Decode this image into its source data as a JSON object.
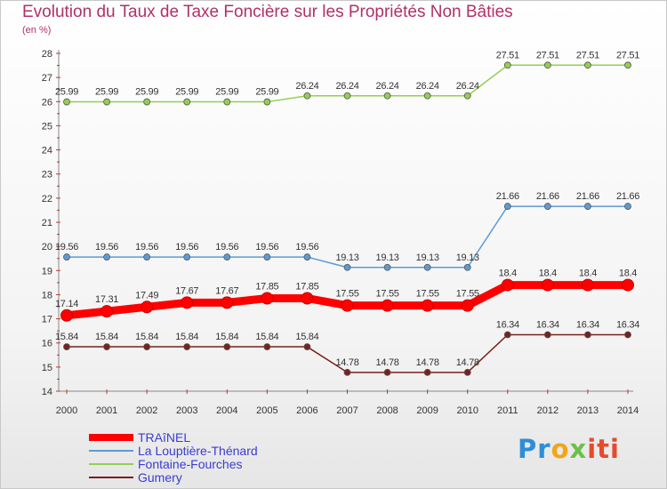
{
  "chart_data": {
    "type": "line",
    "title": "Evolution du Taux de Taxe Foncière sur les Propriétés Non Bâties",
    "ylabel": "(en %)",
    "xlabel": "",
    "x": [
      "2000",
      "2001",
      "2002",
      "2003",
      "2004",
      "2005",
      "2006",
      "2007",
      "2008",
      "2009",
      "2010",
      "2011",
      "2012",
      "2013",
      "2014"
    ],
    "ylim": [
      14,
      28
    ],
    "yticks": [
      14,
      15,
      16,
      17,
      18,
      19,
      20,
      21,
      22,
      23,
      24,
      25,
      26,
      27,
      28
    ],
    "grid": false,
    "legend_position": "bottom-left",
    "series": [
      {
        "name": "TRAîNEL",
        "color": "#ff0000",
        "emphasis": true,
        "values": [
          17.14,
          17.31,
          17.49,
          17.67,
          17.67,
          17.85,
          17.85,
          17.55,
          17.55,
          17.55,
          17.55,
          18.4,
          18.4,
          18.4,
          18.4
        ],
        "labels": [
          "17.14",
          "17.31",
          "17.49",
          "17.67",
          "17.67",
          "17.85",
          "17.85",
          "17.55",
          "17.55",
          "17.55",
          "17.55",
          "18.4",
          "18.4",
          "18.4",
          "18.4"
        ]
      },
      {
        "name": "La Louptière-Thénard",
        "color": "#5b9bd5",
        "emphasis": false,
        "values": [
          19.56,
          19.56,
          19.56,
          19.56,
          19.56,
          19.56,
          19.56,
          19.13,
          19.13,
          19.13,
          19.13,
          21.66,
          21.66,
          21.66,
          21.66
        ],
        "labels": [
          "19.56",
          "19.56",
          "19.56",
          "19.56",
          "19.56",
          "19.56",
          "19.56",
          "19.13",
          "19.13",
          "19.13",
          "19.13",
          "21.66",
          "21.66",
          "21.66",
          "21.66"
        ]
      },
      {
        "name": "Fontaine-Fourches",
        "color": "#92d050",
        "emphasis": false,
        "values": [
          25.99,
          25.99,
          25.99,
          25.99,
          25.99,
          25.99,
          26.24,
          26.24,
          26.24,
          26.24,
          26.24,
          27.51,
          27.51,
          27.51,
          27.51
        ],
        "labels": [
          "25.99",
          "25.99",
          "25.99",
          "25.99",
          "25.99",
          "25.99",
          "26.24",
          "26.24",
          "26.24",
          "26.24",
          "26.24",
          "27.51",
          "27.51",
          "27.51",
          "27.51"
        ]
      },
      {
        "name": "Gumery",
        "color": "#7b1f1f",
        "emphasis": false,
        "values": [
          15.84,
          15.84,
          15.84,
          15.84,
          15.84,
          15.84,
          15.84,
          14.78,
          14.78,
          14.78,
          14.78,
          16.34,
          16.34,
          16.34,
          16.34
        ],
        "labels": [
          "15.84",
          "15.84",
          "15.84",
          "15.84",
          "15.84",
          "15.84",
          "15.84",
          "14.78",
          "14.78",
          "14.78",
          "14.78",
          "16.34",
          "16.34",
          "16.34",
          "16.34"
        ]
      }
    ]
  },
  "colors": {
    "title": "#b0306a",
    "axis": "#c0392b",
    "tick_label": "#333333",
    "data_label": "#333333",
    "legend_text": "#3b3bd1"
  },
  "branding": {
    "logo_parts": [
      "Pr",
      "o",
      "x",
      "iti"
    ],
    "logo_text": "Proxiti"
  }
}
